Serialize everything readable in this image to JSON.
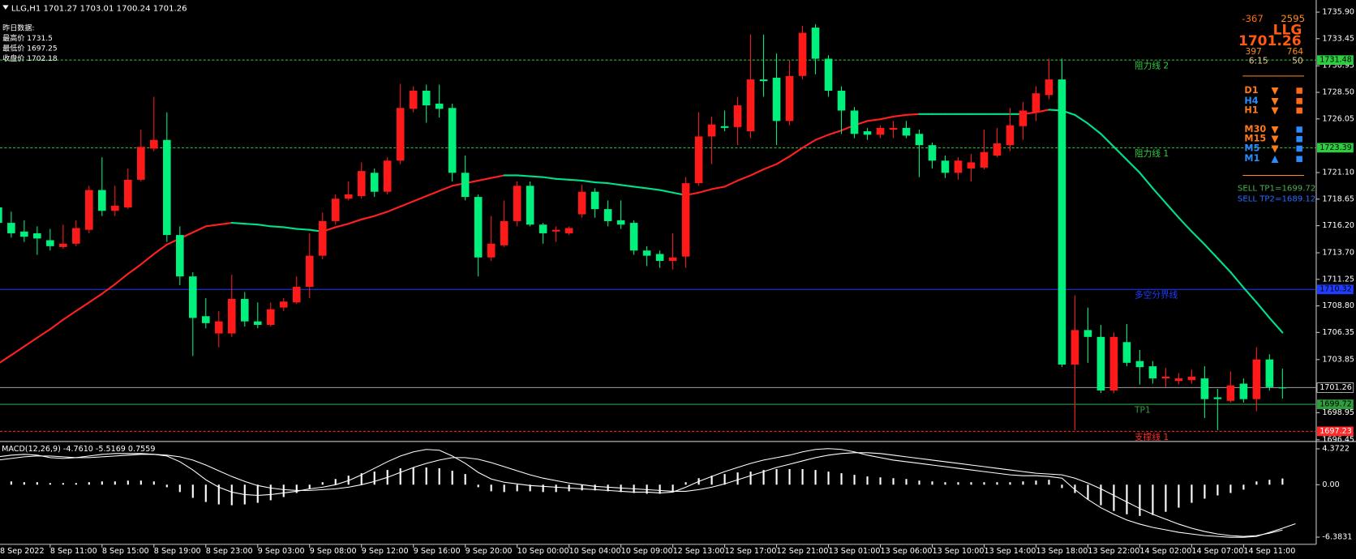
{
  "chart_data": {
    "type": "candlestick",
    "categories": [
      "8 Sep 2022",
      null,
      null,
      null,
      "8 Sep 11:00",
      null,
      null,
      null,
      "8 Sep 15:00",
      null,
      null,
      null,
      "8 Sep 19:00",
      null,
      null,
      null,
      "8 Sep 23:00",
      null,
      null,
      null,
      "9 Sep 03:00",
      null,
      null,
      null,
      "9 Sep 08:00",
      null,
      null,
      null,
      "9 Sep 12:00",
      null,
      null,
      null,
      "9 Sep 16:00",
      null,
      null,
      null,
      "9 Sep 20:00",
      null,
      null,
      null,
      "10 Sep 00:00",
      null,
      null,
      null,
      "10 Sep 04:00",
      null,
      null,
      null,
      "10 Sep 09:00",
      null,
      null,
      null,
      "12 Sep 13:00",
      null,
      null,
      null,
      "12 Sep 17:00",
      null,
      null,
      null,
      "12 Sep 21:00",
      null,
      null,
      null,
      "13 Sep 01:00",
      null,
      null,
      null,
      "13 Sep 06:00",
      null,
      null,
      null,
      "13 Sep 10:00",
      null,
      null,
      null,
      "13 Sep 14:00",
      null,
      null,
      null,
      "13 Sep 18:00",
      null,
      null,
      null,
      "13 Sep 22:00",
      null,
      null,
      null,
      "14 Sep 02:00",
      null,
      null,
      null,
      "14 Sep 07:00",
      null,
      null,
      null,
      "14 Sep 11:00",
      null,
      null,
      null
    ],
    "open": [
      1717.89,
      1716.46,
      1715.66,
      1715.5,
      1714.86,
      1714.23,
      1714.54,
      1715.82,
      1719.49,
      1717.57,
      1717.89,
      1720.44,
      1723.31,
      1724.11,
      1715.34,
      1711.52,
      1707.85,
      1706.26,
      1706.26,
      1709.44,
      1707.37,
      1707.05,
      1708.65,
      1709.12,
      1710.56,
      1713.43,
      1716.62,
      1718.69,
      1718.93,
      1721.08,
      1719.33,
      1722.2,
      1726.98,
      1728.65,
      1727.46,
      1727.06,
      1721.08,
      1718.85,
      1713.27,
      1714.39,
      1716.62,
      1719.88,
      1716.3,
      1715.66,
      1715.5,
      1717.25,
      1719.33,
      1717.73,
      1716.7,
      1716.46,
      1713.91,
      1713.59,
      1712.95,
      1713.35,
      1720.12,
      1724.43,
      1725.38,
      1725.3,
      1724.91,
      1729.69,
      1729.85,
      1725.86,
      1730.01,
      1734.47,
      1731.6,
      1728.65,
      1726.82,
      1724.91,
      1724.59,
      1725.06,
      1725.22,
      1724.67,
      1723.63,
      1722.2,
      1721.08,
      1721.48,
      1721.56,
      1722.67,
      1723.63,
      1725.38,
      1726.66,
      1728.25,
      1729.69,
      1703.39,
      1706.57,
      1705.94,
      1701.0,
      1705.46,
      1703.71,
      1703.23,
      1702.11,
      1701.87,
      1701.95,
      1702.11,
      1700.36,
      1700.04,
      1701.63,
      1700.2,
      1703.86,
      1701.27
    ],
    "high": [
      1719.09,
      1717.49,
      1716.7,
      1716.14,
      1715.9,
      1716.3,
      1716.7,
      1719.88,
      1722.51,
      1719.88,
      1721.48,
      1725.06,
      1728.09,
      1726.66,
      1716.14,
      1711.91,
      1709.52,
      1708.33,
      1711.68,
      1710.08,
      1709.12,
      1709.12,
      1709.52,
      1711.52,
      1715.5,
      1717.41,
      1719.09,
      1720.28,
      1722.04,
      1721.48,
      1722.51,
      1729.29,
      1729.05,
      1729.21,
      1729.21,
      1727.46,
      1722.67,
      1719.09,
      1717.09,
      1718.53,
      1720.28,
      1720.28,
      1716.46,
      1716.14,
      1716.14,
      1719.96,
      1719.65,
      1718.53,
      1718.53,
      1716.7,
      1714.31,
      1713.91,
      1715.5,
      1720.68,
      1726.66,
      1726.26,
      1726.82,
      1728.09,
      1733.83,
      1733.83,
      1732.08,
      1731.44,
      1734.63,
      1734.79,
      1731.92,
      1729.05,
      1727.14,
      1725.22,
      1725.46,
      1725.86,
      1725.86,
      1725.06,
      1723.87,
      1722.67,
      1722.51,
      1722.83,
      1725.06,
      1725.22,
      1727.06,
      1727.62,
      1729.05,
      1731.6,
      1731.6,
      1709.76,
      1708.65,
      1707.05,
      1706.34,
      1707.13,
      1704.74,
      1703.71,
      1703.07,
      1702.59,
      1702.91,
      1703.23,
      1701.15,
      1702.75,
      1702.11,
      1704.98,
      1704.34,
      1703.01
    ],
    "low": [
      1715.66,
      1715.1,
      1714.7,
      1713.51,
      1713.91,
      1714.07,
      1714.31,
      1715.5,
      1717.09,
      1717.09,
      1717.73,
      1720.28,
      1723.07,
      1714.7,
      1710.72,
      1704.18,
      1706.73,
      1704.98,
      1705.94,
      1706.89,
      1706.73,
      1706.89,
      1708.33,
      1708.97,
      1709.52,
      1713.11,
      1716.3,
      1718.53,
      1718.69,
      1718.85,
      1719.09,
      1721.88,
      1726.66,
      1725.7,
      1726.18,
      1720.28,
      1718.53,
      1711.52,
      1712.95,
      1714.23,
      1716.14,
      1716.14,
      1714.54,
      1714.7,
      1715.34,
      1716.94,
      1716.94,
      1716.14,
      1715.9,
      1713.51,
      1712.47,
      1712.31,
      1712.15,
      1712.31,
      1719.88,
      1721.88,
      1724.91,
      1723.63,
      1724.27,
      1728.09,
      1723.63,
      1725.46,
      1729.69,
      1730.17,
      1728.09,
      1724.67,
      1724.27,
      1724.11,
      1724.27,
      1724.27,
      1724.27,
      1720.68,
      1721.48,
      1720.6,
      1720.44,
      1720.28,
      1721.4,
      1722.51,
      1723.07,
      1724.11,
      1725.86,
      1727.85,
      1703.15,
      1697.33,
      1703.55,
      1700.76,
      1700.76,
      1703.23,
      1701.55,
      1701.63,
      1701.31,
      1701.55,
      1701.63,
      1698.45,
      1697.33,
      1699.88,
      1699.88,
      1699.08,
      1701.0,
      1700.24
    ],
    "close": [
      1716.46,
      1715.5,
      1715.18,
      1715.02,
      1714.31,
      1714.54,
      1715.98,
      1719.49,
      1717.57,
      1718.05,
      1720.44,
      1723.47,
      1724.11,
      1715.34,
      1711.52,
      1707.69,
      1707.21,
      1707.37,
      1709.44,
      1707.37,
      1707.05,
      1708.49,
      1709.2,
      1710.56,
      1713.43,
      1716.62,
      1718.69,
      1719.09,
      1721.24,
      1719.33,
      1722.2,
      1727.06,
      1728.65,
      1727.3,
      1726.98,
      1721.08,
      1718.85,
      1713.27,
      1714.54,
      1716.62,
      1719.88,
      1716.3,
      1715.5,
      1715.82,
      1715.98,
      1719.33,
      1717.73,
      1716.62,
      1716.3,
      1713.91,
      1713.43,
      1712.95,
      1713.27,
      1720.12,
      1724.43,
      1725.54,
      1725.22,
      1727.3,
      1729.69,
      1729.53,
      1725.86,
      1730.01,
      1733.99,
      1731.6,
      1728.65,
      1726.82,
      1724.67,
      1724.59,
      1725.22,
      1725.22,
      1724.51,
      1723.63,
      1722.2,
      1721.08,
      1722.2,
      1722.04,
      1722.99,
      1723.79,
      1725.46,
      1726.82,
      1728.41,
      1729.69,
      1703.39,
      1706.57,
      1705.94,
      1701.0,
      1705.94,
      1703.55,
      1703.15,
      1702.11,
      1702.27,
      1702.11,
      1702.27,
      1700.2,
      1700.2,
      1701.47,
      1700.2,
      1703.86,
      1701.31,
      1701.26
    ],
    "up_color": "#ff1a1a",
    "down_color": "#00f07e",
    "ma": {
      "values": [
        1703.47,
        1704.26,
        1705.06,
        1705.86,
        1706.65,
        1707.53,
        1708.33,
        1709.12,
        1709.92,
        1710.8,
        1711.76,
        1712.63,
        1713.59,
        1714.46,
        1715.02,
        1715.58,
        1716.14,
        1716.3,
        1716.46,
        1716.38,
        1716.3,
        1716.14,
        1716.06,
        1715.9,
        1715.82,
        1715.66,
        1716.06,
        1716.38,
        1716.78,
        1717.09,
        1717.49,
        1717.97,
        1718.45,
        1718.93,
        1719.41,
        1719.88,
        1720.12,
        1720.36,
        1720.6,
        1720.84,
        1720.84,
        1720.76,
        1720.68,
        1720.52,
        1720.44,
        1720.36,
        1720.2,
        1720.12,
        1719.96,
        1719.8,
        1719.65,
        1719.49,
        1719.25,
        1719.01,
        1719.25,
        1719.57,
        1719.8,
        1720.36,
        1720.84,
        1721.4,
        1721.88,
        1722.59,
        1723.39,
        1724.11,
        1724.59,
        1724.99,
        1725.46,
        1725.86,
        1726.02,
        1726.26,
        1726.42,
        1726.5,
        1726.5,
        1726.5,
        1726.5,
        1726.5,
        1726.5,
        1726.5,
        1726.5,
        1726.5,
        1726.66,
        1726.9,
        1726.82,
        1726.42,
        1725.62,
        1724.67,
        1723.47,
        1722.28,
        1721.08,
        1719.65,
        1718.29,
        1716.94,
        1715.66,
        1714.46,
        1713.19,
        1711.91,
        1710.48,
        1709.12,
        1707.69,
        1706.34
      ],
      "rising_color": "#ff2020",
      "falling_color": "#00e08a"
    },
    "ylim": [
      1696.37,
      1737.02
    ],
    "yticks": [
      {
        "value": 1735.9,
        "label": "1735.90"
      },
      1733.45,
      1730.95,
      {
        "value": 1728.5,
        "label": "1728.50"
      },
      1726.05,
      {
        "value": 1721.1,
        "label": "1721.10"
      },
      1718.65,
      {
        "value": 1716.2,
        "label": "1716.20"
      },
      {
        "value": 1713.7,
        "label": "1713.70"
      },
      1711.25,
      {
        "value": 1708.8,
        "label": "1708.80"
      },
      1706.35,
      1703.85,
      1698.95,
      1696.45
    ],
    "grid": false,
    "current_price_color": "#8c8c8c",
    "levels": [
      {
        "label": "阻力线 2",
        "value": 1731.48,
        "color": "#2ecc40",
        "dash": true
      },
      {
        "label": "阻力线 1",
        "value": 1723.39,
        "color": "#2ecc40",
        "dash": true
      },
      {
        "label": "多空分界线",
        "value": 1710.32,
        "color": "#1f3cff",
        "dash": false
      },
      {
        "label": "TP1",
        "value": 1699.72,
        "color": "#2e9e3e",
        "dash": false
      },
      {
        "label": "支撑线 1",
        "value": 1697.23,
        "color": "#ff2a2a",
        "dash": true
      }
    ],
    "macd": {
      "label": "MACD(12,26,9) -4.7610 -5.5169 0.7559",
      "color": "#ffffff",
      "histogram": [
        0.5,
        0.4,
        0.3,
        0.3,
        0.2,
        0.2,
        0.2,
        0.3,
        0.4,
        0.4,
        0.5,
        0.5,
        0.4,
        -0.3,
        -0.9,
        -1.6,
        -2.1,
        -2.4,
        -2.5,
        -2.4,
        -2.2,
        -1.9,
        -1.5,
        -1.0,
        -0.5,
        0.3,
        0.7,
        1.1,
        1.4,
        1.6,
        1.8,
        2.0,
        2.1,
        2.1,
        2.0,
        1.7,
        1.3,
        -0.3,
        -0.8,
        -0.9,
        -0.8,
        -0.8,
        -0.9,
        -0.9,
        -0.8,
        -0.7,
        -0.7,
        -0.8,
        -0.9,
        -1.0,
        -1.1,
        -1.1,
        -0.9,
        0.3,
        0.8,
        1.1,
        1.3,
        1.5,
        1.6,
        1.8,
        1.9,
        1.9,
        1.9,
        1.8,
        1.6,
        1.4,
        1.2,
        1.0,
        0.9,
        0.8,
        0.7,
        0.5,
        0.4,
        0.3,
        0.3,
        0.3,
        0.3,
        0.3,
        0.3,
        0.4,
        0.5,
        0.6,
        -0.4,
        -1.0,
        -1.8,
        -2.5,
        -3.2,
        -3.6,
        -3.8,
        -3.7,
        -3.3,
        -2.8,
        -2.2,
        -1.7,
        -1.3,
        -1.0,
        -0.6,
        0.4,
        0.6,
        0.7559
      ],
      "main": [
        3.4,
        3.6,
        3.7,
        3.6,
        3.3,
        3.2,
        3.3,
        3.5,
        3.7,
        3.8,
        3.8,
        3.8,
        3.7,
        3.5,
        2.8,
        1.8,
        0.6,
        -0.3,
        -0.9,
        -1.2,
        -1.3,
        -1.2,
        -1.0,
        -0.8,
        -0.5,
        -0.3,
        0,
        0.5,
        1.2,
        2.0,
        2.8,
        3.5,
        4.0,
        4.3,
        4.2,
        3.5,
        2.6,
        1.5,
        0.7,
        0.3,
        0.1,
        -0.1,
        -0.2,
        -0.3,
        -0.4,
        -0.5,
        -0.6,
        -0.7,
        -0.8,
        -0.9,
        -0.9,
        -1.0,
        -0.9,
        -0.3,
        0.4,
        1.0,
        1.6,
        2.1,
        2.6,
        3.0,
        3.3,
        3.6,
        4.0,
        4.3,
        4.4,
        4.3,
        4.0,
        3.6,
        3.3,
        3.0,
        2.8,
        2.6,
        2.4,
        2.2,
        2.0,
        1.8,
        1.6,
        1.4,
        1.2,
        1.1,
        1.1,
        1.0,
        0.8,
        -0.6,
        -1.8,
        -2.8,
        -3.6,
        -4.3,
        -4.8,
        -5.2,
        -5.5,
        -5.8,
        -6.0,
        -6.2,
        -6.3,
        -6.4,
        -6.4,
        -6.3,
        -5.8,
        -5.3,
        -4.761
      ],
      "signal": [
        3.0,
        3.2,
        3.4,
        3.5,
        3.5,
        3.4,
        3.3,
        3.3,
        3.4,
        3.5,
        3.6,
        3.7,
        3.7,
        3.6,
        3.4,
        3.0,
        2.4,
        1.7,
        1.0,
        0.4,
        -0.1,
        -0.4,
        -0.6,
        -0.7,
        -0.7,
        -0.6,
        -0.5,
        -0.3,
        0,
        0.4,
        0.9,
        1.5,
        2.1,
        2.6,
        3.0,
        3.3,
        3.3,
        3.1,
        2.7,
        2.2,
        1.7,
        1.2,
        0.8,
        0.5,
        0.2,
        0,
        -0.2,
        -0.3,
        -0.4,
        -0.5,
        -0.6,
        -0.7,
        -0.8,
        -0.8,
        -0.6,
        -0.3,
        0.1,
        0.6,
        1.1,
        1.6,
        2.1,
        2.5,
        2.9,
        3.3,
        3.6,
        3.8,
        3.9,
        3.9,
        3.8,
        3.6,
        3.4,
        3.2,
        3.0,
        2.8,
        2.6,
        2.4,
        2.2,
        2.0,
        1.8,
        1.6,
        1.4,
        1.3,
        1.2,
        0.8,
        0.2,
        -0.5,
        -1.3,
        -2.1,
        -2.9,
        -3.6,
        -4.2,
        -4.8,
        -5.3,
        -5.7,
        -6.0,
        -6.2,
        -6.3,
        -6.2,
        -5.9,
        -5.5169
      ],
      "ylim": [
        -7.26,
        5.16
      ],
      "yticks": [
        4.3722,
        {
          "value": 0,
          "label": "0.00"
        },
        -6.3831
      ]
    }
  },
  "overlay": {
    "symbol": "LLG,H1",
    "yesterday": [
      "昨日数据:",
      "最高价 1731.5",
      "最低价 1697.25",
      "收盘价 1702.18"
    ],
    "panel": {
      "a": "-367",
      "b": "2595",
      "name": "LLG",
      "c": "397",
      "d": "764",
      "time": "6:15",
      "e": "50"
    },
    "timeframes": [
      {
        "name": "D1",
        "color": "#ff7a1a",
        "arrow": "▼",
        "arrow_color": "#ff7a1a",
        "square_color": "#ff6a1a"
      },
      {
        "name": "H4",
        "color": "#2a8cff",
        "arrow": "▼",
        "arrow_color": "#ff7a1a",
        "square_color": "#ff6a1a"
      },
      {
        "name": "H1",
        "color": "#ff7a1a",
        "arrow": "▼",
        "arrow_color": "#ff7a1a",
        "square_color": "#ff6a1a"
      },
      {
        "name": "M30",
        "color": "#ff7a1a",
        "arrow": "▼",
        "arrow_color": "#ff7a1a",
        "square_color": "#2a8cff"
      },
      {
        "name": "M15",
        "color": "#ff7a1a",
        "arrow": "▼",
        "arrow_color": "#ff7a1a",
        "square_color": "#2a8cff"
      },
      {
        "name": "M5",
        "color": "#2a8cff",
        "arrow": "▼",
        "arrow_color": "#ff7a1a",
        "square_color": "#2a8cff"
      },
      {
        "name": "M1",
        "color": "#2a8cff",
        "arrow": "▲",
        "arrow_color": "#2a8cff",
        "square_color": "#2a8cff"
      }
    ],
    "sell_tp1": "SELL TP1=1699.72",
    "sell_tp2": "SELL TP2=1689.12"
  }
}
